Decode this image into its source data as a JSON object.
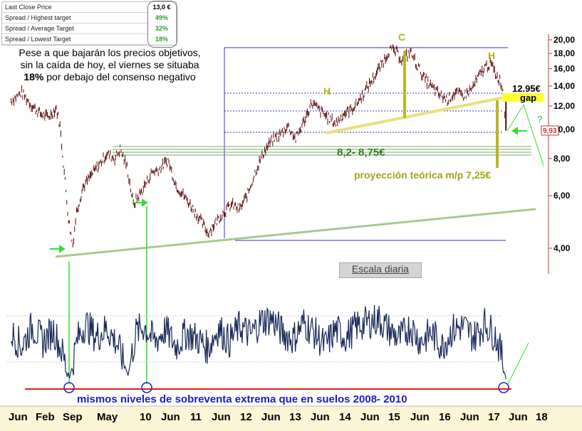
{
  "table": {
    "rows": [
      {
        "label": "Last Close Price",
        "value": "13,0 €"
      },
      {
        "label": "Spread / Highest target",
        "value": "49%"
      },
      {
        "label": "Spread / Average Target",
        "value": "32%"
      },
      {
        "label": "Spread / Lowest Target",
        "value": "18%"
      }
    ]
  },
  "note": {
    "line1": "Pese a que bajarán los precios objetivos,",
    "line2": "sin la caída de hoy, el viernes se situaba",
    "bold": "18%",
    "line3_rest": " por debajo del consenso negativo"
  },
  "escala_label": "Escala diaria",
  "annotations": {
    "head": "C",
    "shoulder_left": "H",
    "shoulder_right": "H",
    "price_level": "12.95€",
    "gap": "gap",
    "question": "?",
    "support_zone": "8,2- 8,75€",
    "projection": "proyección teórica m/p 7,25€",
    "current_price": "9,93",
    "oversold_note": "mismos niveles de sobreventa extrema que en suelos 2008- 2010"
  },
  "colors": {
    "price": "#5a0a0a",
    "oscillator": "#1a2a5a",
    "blue_lines": "#3333cc",
    "green": "#33dd33",
    "trendline": "#a8c890",
    "olive": "#b8b820",
    "red_line": "#e21b1b",
    "gap_yellow": "#ffff33"
  },
  "chart_data": {
    "type": "line",
    "scale": "log",
    "ylim": [
      3.7,
      21
    ],
    "y_ticks": [
      "20,00",
      "18,00",
      "16,00",
      "14,00",
      "12,00",
      "10,00",
      "8,00",
      "6,00",
      "4,00"
    ],
    "x_ticks": [
      "Jun",
      "Feb",
      "Sep",
      "May",
      "10",
      "Jun",
      "11",
      "Jun",
      "12",
      "Jun",
      "13",
      "Jun",
      "14",
      "Jun",
      "15",
      "Jun",
      "16",
      "Jun",
      "17",
      "Jun",
      "18"
    ],
    "series": [
      {
        "values": [
          [
            2008.5,
            12.5
          ],
          [
            2008.7,
            13.3
          ],
          [
            2008.9,
            12.0
          ],
          [
            2009.05,
            11.3
          ],
          [
            2009.2,
            11.0
          ],
          [
            2009.35,
            11.8
          ],
          [
            2009.42,
            10.3
          ],
          [
            2009.5,
            7.2
          ],
          [
            2009.58,
            5.0
          ],
          [
            2009.66,
            4.1
          ],
          [
            2009.73,
            5.3
          ],
          [
            2009.85,
            6.4
          ],
          [
            2010.0,
            7.0
          ],
          [
            2010.15,
            7.6
          ],
          [
            2010.3,
            8.3
          ],
          [
            2010.45,
            8.0
          ],
          [
            2010.55,
            8.6
          ],
          [
            2010.68,
            7.5
          ],
          [
            2010.8,
            5.6
          ],
          [
            2010.95,
            6.2
          ],
          [
            2011.15,
            7.2
          ],
          [
            2011.3,
            7.4
          ],
          [
            2011.45,
            7.9
          ],
          [
            2011.6,
            6.5
          ],
          [
            2011.75,
            6.0
          ],
          [
            2011.9,
            5.5
          ],
          [
            2012.05,
            5.0
          ],
          [
            2012.2,
            4.5
          ],
          [
            2012.35,
            4.9
          ],
          [
            2012.5,
            5.3
          ],
          [
            2012.65,
            5.6
          ],
          [
            2012.8,
            5.4
          ],
          [
            2012.95,
            6.1
          ],
          [
            2013.1,
            7.3
          ],
          [
            2013.25,
            8.4
          ],
          [
            2013.4,
            9.2
          ],
          [
            2013.55,
            9.6
          ],
          [
            2013.7,
            10.3
          ],
          [
            2013.85,
            9.3
          ],
          [
            2014.0,
            10.6
          ],
          [
            2014.15,
            12.3
          ],
          [
            2014.3,
            11.6
          ],
          [
            2014.45,
            11.0
          ],
          [
            2014.6,
            10.5
          ],
          [
            2014.75,
            11.3
          ],
          [
            2014.9,
            11.7
          ],
          [
            2015.05,
            12.6
          ],
          [
            2015.2,
            13.9
          ],
          [
            2015.35,
            15.3
          ],
          [
            2015.5,
            17.0
          ],
          [
            2015.62,
            18.6
          ],
          [
            2015.74,
            18.2
          ],
          [
            2015.86,
            17.0
          ],
          [
            2016.0,
            18.3
          ],
          [
            2016.12,
            16.6
          ],
          [
            2016.25,
            15.0
          ],
          [
            2016.4,
            13.9
          ],
          [
            2016.55,
            13.1
          ],
          [
            2016.7,
            12.6
          ],
          [
            2016.85,
            13.3
          ],
          [
            2017.0,
            13.0
          ],
          [
            2017.15,
            13.6
          ],
          [
            2017.3,
            15.2
          ],
          [
            2017.42,
            16.3
          ],
          [
            2017.52,
            16.6
          ],
          [
            2017.62,
            15.2
          ],
          [
            2017.7,
            14.5
          ],
          [
            2017.76,
            13.0
          ],
          [
            2017.8,
            9.93
          ]
        ]
      }
    ],
    "oscillator": {
      "values": [
        [
          2008.5,
          55
        ],
        [
          2008.7,
          40
        ],
        [
          2008.9,
          62
        ],
        [
          2009.1,
          45
        ],
        [
          2009.3,
          58
        ],
        [
          2009.45,
          35
        ],
        [
          2009.6,
          5
        ],
        [
          2009.75,
          48
        ],
        [
          2009.9,
          65
        ],
        [
          2010.1,
          50
        ],
        [
          2010.3,
          60
        ],
        [
          2010.5,
          42
        ],
        [
          2010.7,
          8
        ],
        [
          2010.85,
          55
        ],
        [
          2011.0,
          62
        ],
        [
          2011.2,
          45
        ],
        [
          2011.4,
          58
        ],
        [
          2011.6,
          40
        ],
        [
          2011.8,
          55
        ],
        [
          2012.0,
          48
        ],
        [
          2012.2,
          38
        ],
        [
          2012.4,
          60
        ],
        [
          2012.6,
          45
        ],
        [
          2012.8,
          62
        ],
        [
          2013.0,
          52
        ],
        [
          2013.2,
          68
        ],
        [
          2013.4,
          70
        ],
        [
          2013.6,
          55
        ],
        [
          2013.8,
          48
        ],
        [
          2014.0,
          66
        ],
        [
          2014.2,
          55
        ],
        [
          2014.4,
          40
        ],
        [
          2014.6,
          58
        ],
        [
          2014.8,
          50
        ],
        [
          2015.0,
          62
        ],
        [
          2015.2,
          66
        ],
        [
          2015.4,
          70
        ],
        [
          2015.6,
          58
        ],
        [
          2015.8,
          48
        ],
        [
          2016.0,
          62
        ],
        [
          2016.2,
          45
        ],
        [
          2016.4,
          55
        ],
        [
          2016.6,
          40
        ],
        [
          2016.8,
          58
        ],
        [
          2017.0,
          62
        ],
        [
          2017.2,
          50
        ],
        [
          2017.4,
          65
        ],
        [
          2017.6,
          52
        ],
        [
          2017.72,
          30
        ],
        [
          2017.8,
          4
        ]
      ]
    }
  }
}
